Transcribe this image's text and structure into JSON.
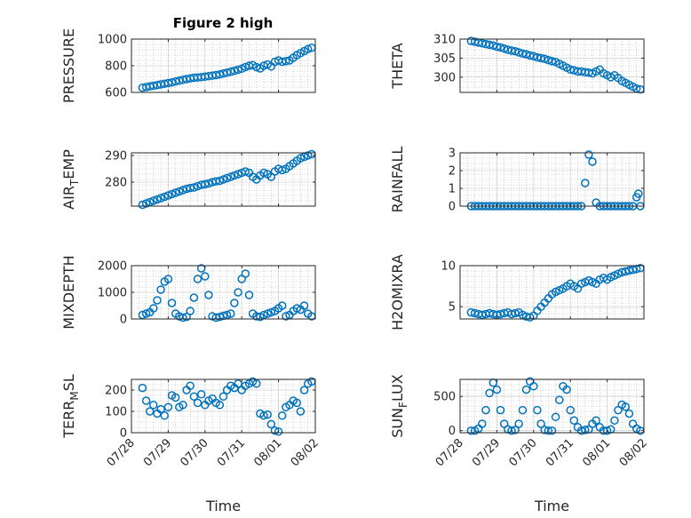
{
  "figure": {
    "title": "Figure 2 high",
    "xlabel": "Time",
    "marker_color": "#0072BD"
  },
  "chart_data": [
    {
      "type": "scatter",
      "ylabel": "PRESSURE",
      "title": "Figure 2 high",
      "xlim": [
        0,
        5
      ],
      "ylim": [
        600,
        1000
      ],
      "yticks": [
        600,
        800,
        1000
      ],
      "grid": true,
      "x": [
        0.3,
        0.4,
        0.5,
        0.6,
        0.7,
        0.8,
        0.9,
        1.0,
        1.1,
        1.2,
        1.3,
        1.4,
        1.5,
        1.6,
        1.7,
        1.8,
        1.9,
        2.0,
        2.1,
        2.2,
        2.3,
        2.4,
        2.5,
        2.6,
        2.7,
        2.8,
        2.9,
        3.0,
        3.1,
        3.2,
        3.3,
        3.4,
        3.5,
        3.6,
        3.7,
        3.8,
        3.9,
        4.0,
        4.1,
        4.2,
        4.3,
        4.4,
        4.5,
        4.6,
        4.7,
        4.8,
        4.9
      ],
      "y": [
        635,
        640,
        645,
        650,
        655,
        660,
        665,
        670,
        675,
        682,
        688,
        695,
        700,
        705,
        710,
        712,
        715,
        718,
        722,
        726,
        730,
        735,
        742,
        748,
        755,
        762,
        770,
        778,
        790,
        800,
        805,
        790,
        780,
        800,
        810,
        795,
        830,
        840,
        830,
        835,
        840,
        860,
        880,
        895,
        910,
        925,
        935
      ]
    },
    {
      "type": "scatter",
      "ylabel": "THETA",
      "xlim": [
        0,
        5
      ],
      "ylim": [
        296,
        310
      ],
      "yticks": [
        300,
        305,
        310
      ],
      "grid": true,
      "x": [
        0.3,
        0.4,
        0.5,
        0.6,
        0.7,
        0.8,
        0.9,
        1.0,
        1.1,
        1.2,
        1.3,
        1.4,
        1.5,
        1.6,
        1.7,
        1.8,
        1.9,
        2.0,
        2.1,
        2.2,
        2.3,
        2.4,
        2.5,
        2.6,
        2.7,
        2.8,
        2.9,
        3.0,
        3.1,
        3.2,
        3.3,
        3.4,
        3.5,
        3.6,
        3.7,
        3.8,
        3.9,
        4.0,
        4.1,
        4.2,
        4.3,
        4.4,
        4.5,
        4.6,
        4.7,
        4.8,
        4.9
      ],
      "y": [
        309.5,
        309.3,
        309.1,
        308.9,
        308.7,
        308.5,
        308.3,
        308.0,
        307.8,
        307.5,
        307.2,
        307.0,
        306.8,
        306.5,
        306.2,
        306.0,
        305.7,
        305.5,
        305.2,
        305.0,
        304.8,
        304.5,
        304.2,
        304.0,
        303.5,
        303.0,
        302.5,
        302.0,
        301.8,
        301.5,
        301.5,
        301.3,
        301.2,
        301.0,
        301.5,
        302.0,
        301.0,
        300.5,
        300.0,
        300.5,
        299.8,
        299.0,
        298.5,
        298.0,
        297.5,
        297.0,
        296.8
      ]
    },
    {
      "type": "scatter",
      "ylabel": "AIR_TEMP",
      "xlim": [
        0,
        5
      ],
      "ylim": [
        271,
        291
      ],
      "yticks": [
        280,
        290
      ],
      "grid": true,
      "x": [
        0.3,
        0.4,
        0.5,
        0.6,
        0.7,
        0.8,
        0.9,
        1.0,
        1.1,
        1.2,
        1.3,
        1.4,
        1.5,
        1.6,
        1.7,
        1.8,
        1.9,
        2.0,
        2.1,
        2.2,
        2.3,
        2.4,
        2.5,
        2.6,
        2.7,
        2.8,
        2.9,
        3.0,
        3.1,
        3.2,
        3.3,
        3.4,
        3.5,
        3.6,
        3.7,
        3.8,
        3.9,
        4.0,
        4.1,
        4.2,
        4.3,
        4.4,
        4.5,
        4.6,
        4.7,
        4.8,
        4.9
      ],
      "y": [
        271.5,
        272,
        272.5,
        273,
        273.5,
        274,
        274.5,
        275,
        275.5,
        276,
        276.5,
        277,
        277.5,
        277.8,
        278,
        278.5,
        279,
        279.2,
        279.5,
        280,
        280.3,
        280.5,
        281,
        281.5,
        282,
        282.5,
        283,
        283.5,
        284,
        283.5,
        282,
        281,
        282.5,
        283.5,
        283,
        282,
        284,
        285,
        284.5,
        285,
        286,
        287,
        288,
        289,
        289.5,
        290,
        290.5
      ]
    },
    {
      "type": "scatter",
      "ylabel": "RAINFALL",
      "xlim": [
        0,
        5
      ],
      "ylim": [
        0,
        3
      ],
      "yticks": [
        0,
        1,
        2,
        3
      ],
      "grid": true,
      "x": [
        0.3,
        0.4,
        0.5,
        0.6,
        0.7,
        0.8,
        0.9,
        1.0,
        1.1,
        1.2,
        1.3,
        1.4,
        1.5,
        1.6,
        1.7,
        1.8,
        1.9,
        2.0,
        2.1,
        2.2,
        2.3,
        2.4,
        2.5,
        2.6,
        2.7,
        2.8,
        2.9,
        3.0,
        3.1,
        3.2,
        3.3,
        3.4,
        3.5,
        3.6,
        3.7,
        3.8,
        3.9,
        4.0,
        4.1,
        4.2,
        4.3,
        4.4,
        4.5,
        4.6,
        4.7,
        4.8,
        4.85,
        4.9
      ],
      "y": [
        0,
        0,
        0,
        0,
        0,
        0,
        0,
        0,
        0,
        0,
        0,
        0,
        0,
        0,
        0,
        0,
        0,
        0,
        0,
        0,
        0,
        0,
        0,
        0,
        0,
        0,
        0,
        0,
        0,
        0,
        0,
        1.3,
        2.9,
        2.5,
        0.2,
        0,
        0,
        0,
        0,
        0,
        0,
        0,
        0,
        0,
        0,
        0.5,
        0.7,
        0
      ]
    },
    {
      "type": "scatter",
      "ylabel": "MIXDEPTH",
      "xlim": [
        0,
        5
      ],
      "ylim": [
        0,
        2000
      ],
      "yticks": [
        0,
        1000,
        2000
      ],
      "grid": true,
      "x": [
        0.3,
        0.4,
        0.5,
        0.6,
        0.7,
        0.8,
        0.9,
        1.0,
        1.1,
        1.2,
        1.3,
        1.4,
        1.5,
        1.6,
        1.7,
        1.8,
        1.9,
        2.0,
        2.1,
        2.2,
        2.3,
        2.4,
        2.5,
        2.6,
        2.7,
        2.8,
        2.9,
        3.0,
        3.1,
        3.2,
        3.3,
        3.4,
        3.5,
        3.6,
        3.7,
        3.8,
        3.9,
        4.0,
        4.1,
        4.2,
        4.3,
        4.4,
        4.5,
        4.6,
        4.7,
        4.8,
        4.9
      ],
      "y": [
        150,
        200,
        250,
        400,
        700,
        1100,
        1400,
        1500,
        600,
        200,
        100,
        50,
        80,
        300,
        800,
        1500,
        1900,
        1600,
        900,
        100,
        50,
        80,
        120,
        150,
        200,
        600,
        1000,
        1500,
        1700,
        900,
        200,
        100,
        80,
        150,
        200,
        250,
        300,
        400,
        500,
        100,
        150,
        300,
        400,
        350,
        500,
        200,
        100
      ]
    },
    {
      "type": "scatter",
      "ylabel": "H2OMIXRA",
      "xlim": [
        0,
        5
      ],
      "ylim": [
        3.5,
        10
      ],
      "yticks": [
        5,
        10
      ],
      "grid": true,
      "x": [
        0.3,
        0.4,
        0.5,
        0.6,
        0.7,
        0.8,
        0.9,
        1.0,
        1.1,
        1.2,
        1.3,
        1.4,
        1.5,
        1.6,
        1.7,
        1.8,
        1.9,
        2.0,
        2.1,
        2.2,
        2.3,
        2.4,
        2.5,
        2.6,
        2.7,
        2.8,
        2.9,
        3.0,
        3.1,
        3.2,
        3.3,
        3.4,
        3.5,
        3.6,
        3.7,
        3.8,
        3.9,
        4.0,
        4.1,
        4.2,
        4.3,
        4.4,
        4.5,
        4.6,
        4.7,
        4.8,
        4.9
      ],
      "y": [
        4.3,
        4.2,
        4.1,
        4.0,
        4.1,
        4.2,
        4.1,
        4.0,
        4.1,
        4.2,
        4.3,
        4.1,
        4.2,
        4.3,
        4.0,
        3.8,
        3.7,
        3.9,
        4.5,
        5.0,
        5.5,
        6.0,
        6.5,
        6.8,
        7.0,
        7.2,
        7.5,
        7.8,
        7.5,
        7.2,
        7.8,
        8.0,
        8.2,
        8.0,
        7.8,
        8.3,
        8.5,
        8.3,
        8.6,
        8.8,
        9.0,
        9.2,
        9.3,
        9.4,
        9.5,
        9.6,
        9.7
      ]
    },
    {
      "type": "scatter",
      "ylabel": "TERR_MSL",
      "xlim": [
        0,
        5
      ],
      "ylim": [
        0,
        250
      ],
      "yticks": [
        0,
        100,
        200
      ],
      "grid": true,
      "x": [
        0.3,
        0.4,
        0.5,
        0.6,
        0.7,
        0.8,
        0.9,
        1.0,
        1.1,
        1.2,
        1.3,
        1.4,
        1.5,
        1.6,
        1.7,
        1.8,
        1.9,
        2.0,
        2.1,
        2.2,
        2.3,
        2.4,
        2.5,
        2.6,
        2.7,
        2.8,
        2.9,
        3.0,
        3.1,
        3.2,
        3.3,
        3.4,
        3.5,
        3.6,
        3.7,
        3.8,
        3.9,
        4.0,
        4.1,
        4.2,
        4.3,
        4.4,
        4.5,
        4.6,
        4.7,
        4.8,
        4.9
      ],
      "y": [
        210,
        150,
        100,
        130,
        90,
        110,
        80,
        120,
        175,
        165,
        120,
        130,
        200,
        220,
        170,
        140,
        180,
        130,
        150,
        160,
        140,
        130,
        170,
        200,
        220,
        210,
        230,
        200,
        220,
        230,
        240,
        230,
        90,
        80,
        85,
        40,
        10,
        5,
        80,
        120,
        130,
        150,
        140,
        100,
        200,
        230,
        240
      ]
    },
    {
      "type": "scatter",
      "ylabel": "SUN_FLUX",
      "xlim": [
        0,
        5
      ],
      "ylim": [
        -30,
        750
      ],
      "yticks": [
        0,
        500
      ],
      "grid": true,
      "x": [
        0.3,
        0.4,
        0.5,
        0.6,
        0.7,
        0.8,
        0.9,
        1.0,
        1.1,
        1.2,
        1.3,
        1.4,
        1.5,
        1.6,
        1.7,
        1.8,
        1.9,
        2.0,
        2.1,
        2.2,
        2.3,
        2.4,
        2.5,
        2.6,
        2.7,
        2.8,
        2.9,
        3.0,
        3.1,
        3.2,
        3.3,
        3.4,
        3.5,
        3.6,
        3.7,
        3.8,
        3.9,
        4.0,
        4.1,
        4.2,
        4.3,
        4.4,
        4.5,
        4.6,
        4.7,
        4.8,
        4.9
      ],
      "y": [
        0,
        0,
        30,
        100,
        300,
        550,
        700,
        600,
        300,
        100,
        20,
        0,
        10,
        100,
        300,
        600,
        720,
        650,
        300,
        100,
        10,
        0,
        0,
        200,
        450,
        650,
        600,
        300,
        150,
        50,
        0,
        10,
        20,
        100,
        150,
        50,
        0,
        0,
        20,
        150,
        300,
        380,
        350,
        250,
        100,
        30,
        0
      ]
    }
  ],
  "x_tick_labels": [
    "07/28",
    "07/29",
    "07/30",
    "07/31",
    "08/01",
    "08/02"
  ]
}
